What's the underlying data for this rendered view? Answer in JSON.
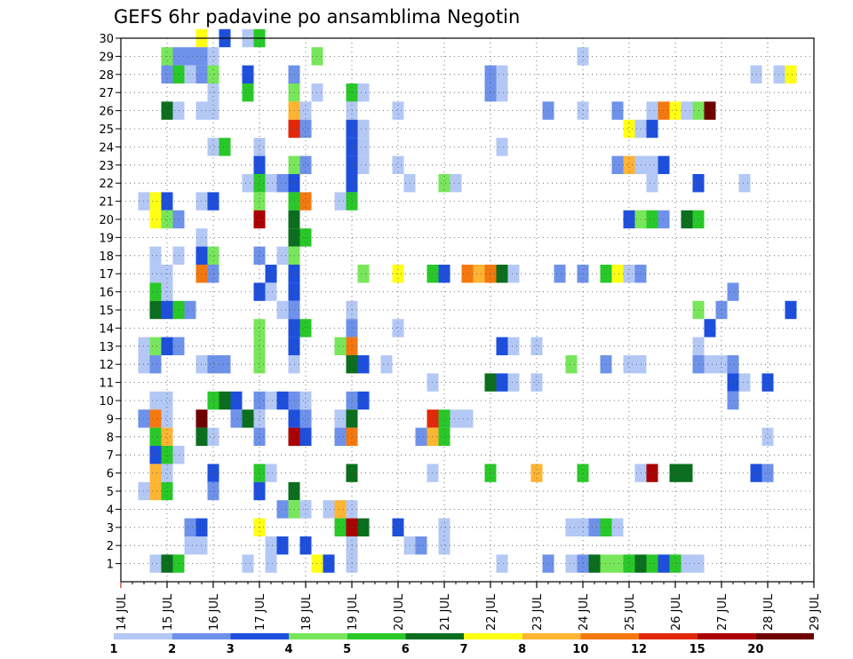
{
  "chart_data": {
    "type": "heatmap",
    "title": "GEFS 6hr padavine po ansamblima Negotin",
    "xlabel": "",
    "ylabel": "",
    "x_tick_labels": [
      "14 JUL",
      "15 JUL",
      "16 JUL",
      "17 JUL",
      "18 JUL",
      "19 JUL",
      "20 JUL",
      "21 JUL",
      "22 JUL",
      "23 JUL",
      "24 JUL",
      "25 JUL",
      "26 JUL",
      "27 JUL",
      "28 JUL",
      "29 JUL"
    ],
    "y_tick_labels": [
      "1",
      "2",
      "3",
      "4",
      "5",
      "6",
      "7",
      "8",
      "9",
      "10",
      "11",
      "12",
      "13",
      "14",
      "15",
      "16",
      "17",
      "18",
      "19",
      "20",
      "21",
      "22",
      "23",
      "24",
      "25",
      "26",
      "27",
      "28",
      "29",
      "30"
    ],
    "x_time_step_hours": 6,
    "x_range_days": [
      14,
      29
    ],
    "y_range": [
      0,
      30
    ],
    "grid": true,
    "colorbar": {
      "bounds": [
        1,
        2,
        3,
        4,
        5,
        6,
        7,
        8,
        10,
        12,
        15,
        20
      ],
      "labels": [
        "1",
        "2",
        "3",
        "4",
        "5",
        "6",
        "7",
        "8",
        "10",
        "12",
        "15",
        "20"
      ],
      "colors": [
        "#b4c8f5",
        "#6e91ea",
        "#1e4fdc",
        "#78e65a",
        "#28c828",
        "#0a6e1e",
        "#ffff14",
        "#ffb432",
        "#f5780f",
        "#e1280a",
        "#aa0000",
        "#6e0000"
      ]
    },
    "cells_note": "each cell: [x_day_position, member(y), color_index 0-11]",
    "cells": [
      [
        15.75,
        30,
        6
      ],
      [
        16.25,
        30,
        2
      ],
      [
        16.75,
        30,
        0
      ],
      [
        17.0,
        30,
        4
      ],
      [
        15.0,
        29,
        3
      ],
      [
        15.25,
        29,
        1
      ],
      [
        15.5,
        29,
        1
      ],
      [
        15.75,
        29,
        1
      ],
      [
        16.0,
        29,
        0
      ],
      [
        18.25,
        29,
        3
      ],
      [
        24.0,
        29,
        0
      ],
      [
        15.0,
        28,
        1
      ],
      [
        15.25,
        28,
        4
      ],
      [
        15.5,
        28,
        0
      ],
      [
        15.75,
        28,
        1
      ],
      [
        16.0,
        28,
        3
      ],
      [
        16.75,
        28,
        2
      ],
      [
        17.75,
        28,
        1
      ],
      [
        22.0,
        28,
        1
      ],
      [
        22.25,
        28,
        0
      ],
      [
        27.75,
        28,
        0
      ],
      [
        28.25,
        28,
        0
      ],
      [
        28.5,
        28,
        6
      ],
      [
        16.0,
        27,
        0
      ],
      [
        16.75,
        27,
        4
      ],
      [
        17.75,
        27,
        3
      ],
      [
        18.25,
        27,
        0
      ],
      [
        19.0,
        27,
        4
      ],
      [
        19.25,
        27,
        0
      ],
      [
        22.0,
        27,
        1
      ],
      [
        22.25,
        27,
        0
      ],
      [
        15.0,
        26,
        5
      ],
      [
        15.25,
        26,
        0
      ],
      [
        15.75,
        26,
        0
      ],
      [
        16.0,
        26,
        0
      ],
      [
        17.75,
        26,
        7
      ],
      [
        18.0,
        26,
        0
      ],
      [
        19.0,
        26,
        0
      ],
      [
        20.0,
        26,
        0
      ],
      [
        23.25,
        26,
        1
      ],
      [
        24.0,
        26,
        0
      ],
      [
        24.75,
        26,
        1
      ],
      [
        25.5,
        26,
        0
      ],
      [
        25.75,
        26,
        8
      ],
      [
        26.0,
        26,
        6
      ],
      [
        26.25,
        26,
        0
      ],
      [
        26.5,
        26,
        3
      ],
      [
        26.75,
        26,
        11
      ],
      [
        17.75,
        25,
        9
      ],
      [
        18.0,
        25,
        1
      ],
      [
        19.0,
        25,
        2
      ],
      [
        19.25,
        25,
        0
      ],
      [
        25.0,
        25,
        6
      ],
      [
        25.25,
        25,
        0
      ],
      [
        25.5,
        25,
        2
      ],
      [
        16.0,
        24,
        0
      ],
      [
        16.25,
        24,
        4
      ],
      [
        17.0,
        24,
        0
      ],
      [
        19.0,
        24,
        2
      ],
      [
        19.25,
        24,
        0
      ],
      [
        22.25,
        24,
        0
      ],
      [
        17.0,
        23,
        2
      ],
      [
        17.75,
        23,
        3
      ],
      [
        18.0,
        23,
        1
      ],
      [
        19.0,
        23,
        2
      ],
      [
        19.25,
        23,
        0
      ],
      [
        20.0,
        23,
        0
      ],
      [
        24.75,
        23,
        1
      ],
      [
        25.0,
        23,
        7
      ],
      [
        25.25,
        23,
        0
      ],
      [
        25.5,
        23,
        0
      ],
      [
        25.75,
        23,
        2
      ],
      [
        16.75,
        22,
        0
      ],
      [
        17.0,
        22,
        4
      ],
      [
        17.25,
        22,
        0
      ],
      [
        17.5,
        22,
        1
      ],
      [
        17.75,
        22,
        2
      ],
      [
        19.0,
        22,
        2
      ],
      [
        20.25,
        22,
        0
      ],
      [
        21.0,
        22,
        3
      ],
      [
        21.25,
        22,
        0
      ],
      [
        25.5,
        22,
        0
      ],
      [
        26.5,
        22,
        2
      ],
      [
        27.5,
        22,
        0
      ],
      [
        14.5,
        21,
        0
      ],
      [
        14.75,
        21,
        6
      ],
      [
        15.0,
        21,
        2
      ],
      [
        15.75,
        21,
        0
      ],
      [
        16.0,
        21,
        2
      ],
      [
        17.0,
        21,
        3
      ],
      [
        17.75,
        21,
        4
      ],
      [
        18.0,
        21,
        8
      ],
      [
        18.75,
        21,
        0
      ],
      [
        19.0,
        21,
        4
      ],
      [
        14.75,
        20,
        6
      ],
      [
        15.0,
        20,
        3
      ],
      [
        15.25,
        20,
        1
      ],
      [
        17.0,
        20,
        10
      ],
      [
        17.75,
        20,
        5
      ],
      [
        25.0,
        20,
        2
      ],
      [
        25.25,
        20,
        3
      ],
      [
        25.5,
        20,
        4
      ],
      [
        25.75,
        20,
        1
      ],
      [
        26.25,
        20,
        5
      ],
      [
        26.5,
        20,
        4
      ],
      [
        15.75,
        19,
        0
      ],
      [
        17.75,
        19,
        5
      ],
      [
        18.0,
        19,
        4
      ],
      [
        14.75,
        18,
        0
      ],
      [
        15.25,
        18,
        0
      ],
      [
        15.75,
        18,
        2
      ],
      [
        16.0,
        18,
        3
      ],
      [
        17.0,
        18,
        1
      ],
      [
        17.5,
        18,
        0
      ],
      [
        17.75,
        18,
        3
      ],
      [
        14.75,
        17,
        0
      ],
      [
        15.0,
        17,
        0
      ],
      [
        15.75,
        17,
        8
      ],
      [
        16.0,
        17,
        1
      ],
      [
        17.25,
        17,
        2
      ],
      [
        17.75,
        17,
        2
      ],
      [
        19.25,
        17,
        3
      ],
      [
        20.0,
        17,
        6
      ],
      [
        20.75,
        17,
        4
      ],
      [
        21.0,
        17,
        2
      ],
      [
        21.5,
        17,
        8
      ],
      [
        21.75,
        17,
        7
      ],
      [
        22.0,
        17,
        8
      ],
      [
        22.25,
        17,
        5
      ],
      [
        22.5,
        17,
        0
      ],
      [
        23.5,
        17,
        1
      ],
      [
        24.0,
        17,
        1
      ],
      [
        24.5,
        17,
        4
      ],
      [
        24.75,
        17,
        6
      ],
      [
        25.0,
        17,
        0
      ],
      [
        25.25,
        17,
        1
      ],
      [
        14.75,
        16,
        4
      ],
      [
        15.0,
        16,
        0
      ],
      [
        17.0,
        16,
        2
      ],
      [
        17.25,
        16,
        0
      ],
      [
        17.75,
        16,
        2
      ],
      [
        27.25,
        16,
        1
      ],
      [
        14.75,
        15,
        5
      ],
      [
        15.0,
        15,
        2
      ],
      [
        15.25,
        15,
        4
      ],
      [
        15.5,
        15,
        1
      ],
      [
        17.5,
        15,
        0
      ],
      [
        17.75,
        15,
        1
      ],
      [
        19.0,
        15,
        0
      ],
      [
        26.5,
        15,
        3
      ],
      [
        27.0,
        15,
        1
      ],
      [
        28.5,
        15,
        2
      ],
      [
        17.0,
        14,
        3
      ],
      [
        17.75,
        14,
        2
      ],
      [
        18.0,
        14,
        4
      ],
      [
        19.0,
        14,
        1
      ],
      [
        20.0,
        14,
        0
      ],
      [
        26.75,
        14,
        2
      ],
      [
        14.5,
        13,
        0
      ],
      [
        14.75,
        13,
        3
      ],
      [
        15.0,
        13,
        2
      ],
      [
        15.25,
        13,
        1
      ],
      [
        17.0,
        13,
        3
      ],
      [
        17.75,
        13,
        2
      ],
      [
        18.75,
        13,
        3
      ],
      [
        19.0,
        13,
        8
      ],
      [
        22.25,
        13,
        2
      ],
      [
        22.5,
        13,
        0
      ],
      [
        23.0,
        13,
        0
      ],
      [
        26.5,
        13,
        0
      ],
      [
        14.5,
        12,
        0
      ],
      [
        14.75,
        12,
        1
      ],
      [
        15.75,
        12,
        0
      ],
      [
        16.0,
        12,
        1
      ],
      [
        16.25,
        12,
        1
      ],
      [
        17.0,
        12,
        3
      ],
      [
        17.75,
        12,
        0
      ],
      [
        19.0,
        12,
        5
      ],
      [
        19.25,
        12,
        2
      ],
      [
        19.75,
        12,
        0
      ],
      [
        23.75,
        12,
        3
      ],
      [
        24.5,
        12,
        1
      ],
      [
        25.0,
        12,
        0
      ],
      [
        25.25,
        12,
        0
      ],
      [
        26.5,
        12,
        1
      ],
      [
        26.75,
        12,
        0
      ],
      [
        27.0,
        12,
        0
      ],
      [
        27.25,
        12,
        1
      ],
      [
        20.75,
        11,
        0
      ],
      [
        22.0,
        11,
        5
      ],
      [
        22.25,
        11,
        2
      ],
      [
        22.5,
        11,
        0
      ],
      [
        23.0,
        11,
        0
      ],
      [
        27.25,
        11,
        2
      ],
      [
        27.5,
        11,
        0
      ],
      [
        28.0,
        11,
        2
      ],
      [
        14.75,
        10,
        0
      ],
      [
        15.0,
        10,
        0
      ],
      [
        16.0,
        10,
        4
      ],
      [
        16.25,
        10,
        5
      ],
      [
        16.5,
        10,
        2
      ],
      [
        17.0,
        10,
        1
      ],
      [
        17.25,
        10,
        0
      ],
      [
        17.5,
        10,
        2
      ],
      [
        17.75,
        10,
        1
      ],
      [
        18.0,
        10,
        0
      ],
      [
        19.0,
        10,
        1
      ],
      [
        19.25,
        10,
        2
      ],
      [
        27.25,
        10,
        1
      ],
      [
        14.5,
        9,
        1
      ],
      [
        14.75,
        9,
        8
      ],
      [
        15.0,
        9,
        0
      ],
      [
        15.75,
        9,
        11
      ],
      [
        16.5,
        9,
        1
      ],
      [
        16.75,
        9,
        5
      ],
      [
        17.0,
        9,
        0
      ],
      [
        17.75,
        9,
        2
      ],
      [
        18.0,
        9,
        1
      ],
      [
        18.75,
        9,
        0
      ],
      [
        19.0,
        9,
        5
      ],
      [
        20.75,
        9,
        9
      ],
      [
        21.0,
        9,
        4
      ],
      [
        21.25,
        9,
        0
      ],
      [
        21.5,
        9,
        0
      ],
      [
        14.75,
        8,
        4
      ],
      [
        15.0,
        8,
        7
      ],
      [
        15.75,
        8,
        5
      ],
      [
        16.0,
        8,
        0
      ],
      [
        17.0,
        8,
        1
      ],
      [
        17.75,
        8,
        10
      ],
      [
        18.0,
        8,
        2
      ],
      [
        18.75,
        8,
        1
      ],
      [
        19.0,
        8,
        8
      ],
      [
        20.5,
        8,
        1
      ],
      [
        20.75,
        8,
        7
      ],
      [
        21.0,
        8,
        4
      ],
      [
        28.0,
        8,
        0
      ],
      [
        14.75,
        7,
        2
      ],
      [
        15.0,
        7,
        4
      ],
      [
        15.25,
        7,
        0
      ],
      [
        14.75,
        6,
        7
      ],
      [
        15.0,
        6,
        0
      ],
      [
        16.0,
        6,
        2
      ],
      [
        17.0,
        6,
        4
      ],
      [
        17.25,
        6,
        0
      ],
      [
        19.0,
        6,
        5
      ],
      [
        20.75,
        6,
        0
      ],
      [
        22.0,
        6,
        4
      ],
      [
        23.0,
        6,
        7
      ],
      [
        24.0,
        6,
        4
      ],
      [
        25.25,
        6,
        0
      ],
      [
        25.5,
        6,
        10
      ],
      [
        26.0,
        6,
        5
      ],
      [
        26.25,
        6,
        5
      ],
      [
        27.75,
        6,
        2
      ],
      [
        28.0,
        6,
        1
      ],
      [
        14.5,
        5,
        0
      ],
      [
        14.75,
        5,
        7
      ],
      [
        15.0,
        5,
        4
      ],
      [
        16.0,
        5,
        1
      ],
      [
        17.0,
        5,
        2
      ],
      [
        17.75,
        5,
        5
      ],
      [
        17.5,
        4,
        1
      ],
      [
        17.75,
        4,
        3
      ],
      [
        18.0,
        4,
        0
      ],
      [
        18.5,
        4,
        0
      ],
      [
        18.75,
        4,
        7
      ],
      [
        19.0,
        4,
        0
      ],
      [
        15.5,
        3,
        1
      ],
      [
        15.75,
        3,
        2
      ],
      [
        17.0,
        3,
        6
      ],
      [
        18.75,
        3,
        4
      ],
      [
        19.0,
        3,
        10
      ],
      [
        19.25,
        3,
        5
      ],
      [
        20.0,
        3,
        2
      ],
      [
        21.0,
        3,
        0
      ],
      [
        23.75,
        3,
        0
      ],
      [
        24.0,
        3,
        0
      ],
      [
        24.25,
        3,
        1
      ],
      [
        24.5,
        3,
        4
      ],
      [
        24.75,
        3,
        0
      ],
      [
        15.5,
        2,
        0
      ],
      [
        15.75,
        2,
        0
      ],
      [
        17.25,
        2,
        0
      ],
      [
        17.5,
        2,
        2
      ],
      [
        18.0,
        2,
        2
      ],
      [
        19.0,
        2,
        0
      ],
      [
        20.25,
        2,
        0
      ],
      [
        20.5,
        2,
        1
      ],
      [
        21.0,
        2,
        0
      ],
      [
        14.75,
        1,
        0
      ],
      [
        15.0,
        1,
        5
      ],
      [
        15.25,
        1,
        4
      ],
      [
        16.75,
        1,
        0
      ],
      [
        17.25,
        1,
        0
      ],
      [
        18.25,
        1,
        6
      ],
      [
        18.5,
        1,
        2
      ],
      [
        19.0,
        1,
        0
      ],
      [
        22.25,
        1,
        0
      ],
      [
        23.25,
        1,
        1
      ],
      [
        23.75,
        1,
        0
      ],
      [
        24.0,
        1,
        1
      ],
      [
        24.25,
        1,
        5
      ],
      [
        24.5,
        1,
        3
      ],
      [
        24.75,
        1,
        3
      ],
      [
        25.0,
        1,
        4
      ],
      [
        25.25,
        1,
        5
      ],
      [
        25.5,
        1,
        4
      ],
      [
        25.75,
        1,
        2
      ],
      [
        26.0,
        1,
        4
      ],
      [
        26.25,
        1,
        0
      ],
      [
        26.5,
        1,
        0
      ]
    ]
  }
}
